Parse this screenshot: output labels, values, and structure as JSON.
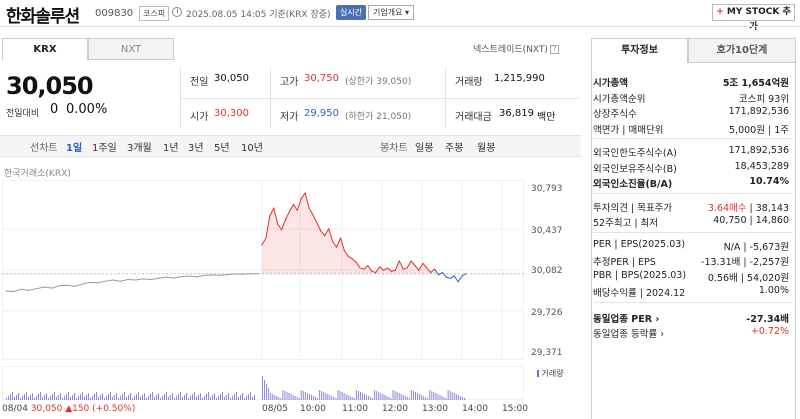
{
  "header": {
    "stock_name": "한화솔루션",
    "stock_code": "009830",
    "market_badge": "코스피",
    "timestamp": "2025.08.05 14:05 기준(KRX 장중)",
    "realtime_label": "실시간",
    "corp_overview_label": "기업개요 ▾",
    "mystock_plus": "+",
    "mystock_label": "MY STOCK 추가"
  },
  "exchange_tabs": [
    "KRX",
    "NXT"
  ],
  "nextrade_label": "넥스트레이드(NXT)",
  "help_glyph": "?",
  "price": {
    "current": "30,050",
    "change_label": "전일대비",
    "change_value": "0",
    "change_pct": "0.00%"
  },
  "summary": {
    "prev_close_label": "전일",
    "prev_close": "30,050",
    "open_label": "시가",
    "open": "30,300",
    "high_label": "고가",
    "high": "30,750",
    "upper_limit": "(상한가 39,050)",
    "low_label": "저가",
    "low": "29,950",
    "lower_limit": "(하한가 21,050)",
    "volume_label": "거래량",
    "volume": "1,215,990",
    "amount_label": "거래대금",
    "amount": "36,819",
    "amount_unit": "백만"
  },
  "range_tabs": {
    "line_label": "선차트",
    "line_options": [
      "1일",
      "1주일",
      "3개월",
      "1년",
      "3년",
      "5년",
      "10년"
    ],
    "selected": "1일",
    "candle_label": "봉차트",
    "candle_options": [
      "일봉",
      "주봉",
      "월봉"
    ]
  },
  "chart_source": "한국거래소(KRX)",
  "chart_data": {
    "type": "line",
    "title": "",
    "y_ticks": [
      "30,793",
      "30,437",
      "30,082",
      "29,726",
      "29,371"
    ],
    "ylim": [
      29371,
      30793
    ],
    "reference_price": 30050,
    "x_ticks": [
      "08/04",
      "08/05",
      "10:00",
      "11:00",
      "12:00",
      "13:00",
      "14:00",
      "15:00"
    ],
    "prev_day_series": [
      29900,
      29895,
      29915,
      29905,
      29920,
      29935,
      29925,
      29945,
      29950,
      29940,
      29960,
      29975,
      29970,
      29985,
      29995,
      29985,
      30000,
      29995,
      30005,
      30000,
      30010,
      30020,
      30012,
      30025,
      30030,
      30022,
      30035,
      30040,
      30035,
      30042,
      30048,
      30045,
      30050,
      30050
    ],
    "today_series": [
      30300,
      30360,
      30550,
      30620,
      30480,
      30430,
      30520,
      30590,
      30650,
      30600,
      30700,
      30750,
      30620,
      30560,
      30490,
      30420,
      30380,
      30440,
      30330,
      30280,
      30360,
      30250,
      30200,
      30180,
      30150,
      30100,
      30090,
      30120,
      30070,
      30060,
      30110,
      30080,
      30100,
      30070,
      30080,
      30160,
      30090,
      30100,
      30160,
      30120,
      30080,
      30140,
      30100,
      30060,
      30090,
      30040,
      30060,
      30020,
      30010,
      30030,
      29980,
      30030,
      30050
    ]
  },
  "volume_legend": "거래량",
  "bottom_info": {
    "date": "08/04",
    "price": "30,050",
    "arrow": "▲150",
    "pct": "(+0.50%)"
  },
  "right_panel": {
    "tabs": [
      "투자정보",
      "호가10단계"
    ],
    "rows_a": [
      {
        "label": "시가총액",
        "value": "5조 1,654억원",
        "bold": true
      },
      {
        "label": "시가총액순위",
        "value": "코스피 93위"
      },
      {
        "label": "상장주식수",
        "value": "171,892,536"
      },
      {
        "label": "액면가 | 매매단위",
        "value": "5,000원 | 1주"
      }
    ],
    "rows_b": [
      {
        "label": "외국인한도주식수(A)",
        "value": "171,892,536"
      },
      {
        "label": "외국인보유주식수(B)",
        "value": "18,453,289"
      },
      {
        "label": "외국인소진율(B/A)",
        "value": "10.74%",
        "bold": true
      }
    ],
    "opinion_label": "투자의견 | 목표주가",
    "opinion_value": "3.64매수",
    "target_price": "38,143",
    "week52_label": "52주최고 | 최저",
    "week52_value": "40,750 | 14,860",
    "rows_c": [
      {
        "label": "PER | EPS(2025.03)",
        "value": "N/A | -5,673원"
      },
      {
        "label": "추정PER | EPS",
        "value": "-13.31배 | -2,257원"
      },
      {
        "label": "PBR | BPS(2025.03)",
        "value": "0.56배 | 54,020원"
      },
      {
        "label": "배당수익률 | 2024.12",
        "value": "1.00%"
      }
    ],
    "sector_per_label": "동일업종 PER",
    "sector_per_value": "-27.34배",
    "sector_rate_label": "동일업종 등락률",
    "sector_rate_value": "+0.72%"
  },
  "colors": {
    "up": "#e0322b",
    "down": "#2a5fd0",
    "prev_line": "#9a9a9a",
    "accent": "#4a6fb3"
  }
}
